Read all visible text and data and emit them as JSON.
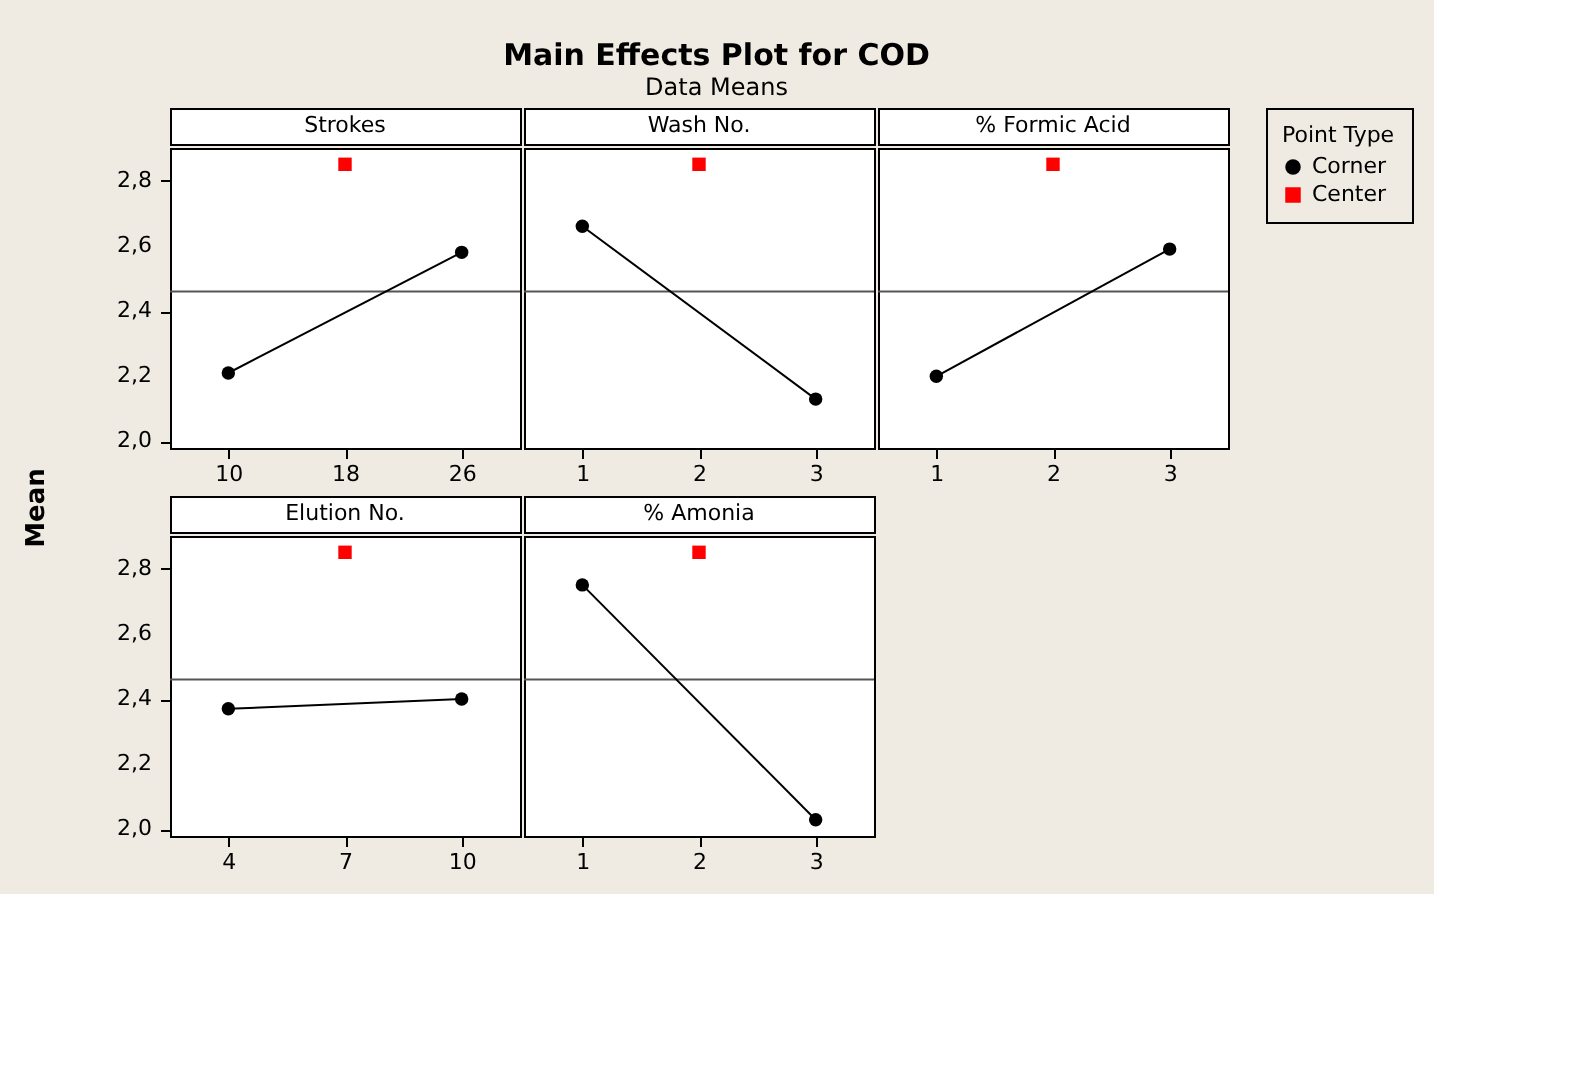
{
  "chart_data": [
    {
      "type": "line",
      "ylabel": "Mean",
      "xlabel": "Strokes",
      "legend": "right",
      "legend_title": "Point Type",
      "xlim": [
        6,
        30
      ],
      "xticks": [
        10,
        18,
        26
      ],
      "ylim": [
        1.98,
        2.9
      ],
      "yticks": [
        {
          "value": 2.0,
          "label": "2,0"
        },
        {
          "value": 2.2,
          "label": "2,2"
        },
        {
          "value": 2.4,
          "label": "2,4"
        },
        {
          "value": 2.6,
          "label": "2,6"
        },
        {
          "value": 2.8,
          "label": "2,8"
        }
      ],
      "ref_lines": [
        {
          "axis": "y",
          "value": 2.46,
          "color": "#555555"
        }
      ],
      "series": [
        {
          "name": "Corner",
          "marker": "circle",
          "color": "#000000",
          "x": [
            10,
            26
          ],
          "values": [
            2.21,
            2.58
          ]
        },
        {
          "name": "Center",
          "marker": "square",
          "color": "#ff0000",
          "x": [
            18
          ],
          "values": [
            2.85
          ]
        }
      ]
    },
    {
      "type": "line",
      "title": "Main Effects Plot for COD",
      "subtitle": "Data Means",
      "xlabel": "Wash No.",
      "xlim": [
        0.5,
        3.5
      ],
      "xticks": [
        1,
        2,
        3
      ],
      "ylim": [
        1.98,
        2.9
      ],
      "tick_labels": "x",
      "ref_lines": [
        {
          "axis": "y",
          "value": 2.46,
          "color": "#555555"
        }
      ],
      "series": [
        {
          "name": "Corner",
          "marker": "circle",
          "color": "#000000",
          "x": [
            1,
            3
          ],
          "values": [
            2.66,
            2.13
          ]
        },
        {
          "name": "Center",
          "marker": "square",
          "color": "#ff0000",
          "x": [
            2
          ],
          "values": [
            2.85
          ]
        }
      ]
    },
    {
      "type": "line",
      "xlabel": "% Formic Acid",
      "xlim": [
        0.5,
        3.5
      ],
      "xticks": [
        1,
        2,
        3
      ],
      "ylim": [
        1.98,
        2.9
      ],
      "tick_labels": "x",
      "ref_lines": [
        {
          "axis": "y",
          "value": 2.46,
          "color": "#555555"
        }
      ],
      "series": [
        {
          "name": "Corner",
          "marker": "circle",
          "color": "#000000",
          "x": [
            1,
            3
          ],
          "values": [
            2.2,
            2.59
          ]
        },
        {
          "name": "Center",
          "marker": "square",
          "color": "#ff0000",
          "x": [
            2
          ],
          "values": [
            2.85
          ]
        }
      ]
    },
    {
      "type": "line",
      "xlabel": "Elution No.",
      "xlim": [
        2.5,
        11.5
      ],
      "xticks": [
        4,
        7,
        10
      ],
      "ylim": [
        1.98,
        2.9
      ],
      "yticks": [
        {
          "value": 2.0,
          "label": "2,0"
        },
        {
          "value": 2.2,
          "label": "2,2"
        },
        {
          "value": 2.4,
          "label": "2,4"
        },
        {
          "value": 2.6,
          "label": "2,6"
        },
        {
          "value": 2.8,
          "label": "2,8"
        }
      ],
      "ref_lines": [
        {
          "axis": "y",
          "value": 2.46,
          "color": "#555555"
        }
      ],
      "series": [
        {
          "name": "Corner",
          "marker": "circle",
          "color": "#000000",
          "x": [
            4,
            10
          ],
          "values": [
            2.37,
            2.4
          ]
        },
        {
          "name": "Center",
          "marker": "square",
          "color": "#ff0000",
          "x": [
            7
          ],
          "values": [
            2.85
          ]
        }
      ]
    },
    {
      "type": "line",
      "xlabel": "% Amonia",
      "xlim": [
        0.5,
        3.5
      ],
      "xticks": [
        1,
        2,
        3
      ],
      "ylim": [
        1.98,
        2.9
      ],
      "tick_labels": "x",
      "ref_lines": [
        {
          "axis": "y",
          "value": 2.46,
          "color": "#555555"
        }
      ],
      "series": [
        {
          "name": "Corner",
          "marker": "circle",
          "color": "#000000",
          "x": [
            1,
            3
          ],
          "values": [
            2.75,
            2.03
          ]
        },
        {
          "name": "Center",
          "marker": "square",
          "color": "#ff0000",
          "x": [
            2
          ],
          "values": [
            2.85
          ]
        }
      ]
    }
  ]
}
